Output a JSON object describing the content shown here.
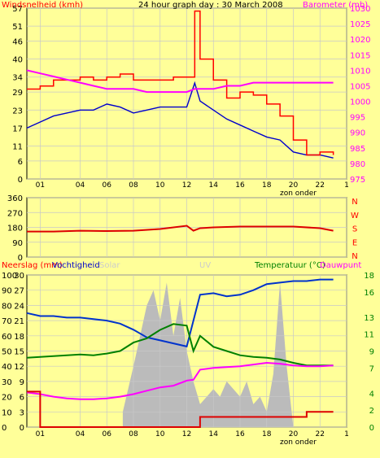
{
  "header": {
    "title": "24 hour graph day : 30 March 2008",
    "left_label": "Windsnelheid (kmh)",
    "right_label": "Barometer (mb)"
  },
  "panel2": {
    "right_letters": [
      "N",
      "W",
      "S",
      "E",
      "N"
    ]
  },
  "panel3": {
    "neerslag_label": "Neerslag (mm)",
    "humidity_label": "Vochtigheid",
    "solar_label": "Solar",
    "uv_label": "UV",
    "temp_label": "Temperatuur (°C)",
    "dew_label": "Dauwpunt"
  },
  "x_labels": {
    "ticks": [
      "01",
      "04",
      "06",
      "08",
      "10",
      "12",
      "14",
      "16",
      "18",
      "20",
      "22",
      "1"
    ],
    "sunset_label": "zon onder"
  },
  "colors": {
    "background": "#ffff99",
    "grid": "#c8c8c8",
    "wind": "#ff0000",
    "gust": "#0000cc",
    "barometer": "#ff00ff",
    "direction": "#dd0000",
    "humidity": "#0033cc",
    "temperature": "#008000",
    "dewpoint": "#ff00ff",
    "rain": "#dd0000",
    "solar": "#bbbbbb",
    "uv": "#99ccff"
  },
  "chart_data": [
    {
      "type": "line",
      "title": "24 hour graph day : 30 March 2008",
      "xlabel": "",
      "x_ticks": [
        "01",
        "04",
        "06",
        "08",
        "10",
        "12",
        "14",
        "16",
        "18",
        "20",
        "22",
        "1"
      ],
      "y_left_label": "Windsnelheid (kmh)",
      "y_left_ticks": [
        0,
        6,
        11,
        17,
        23,
        29,
        34,
        40,
        46,
        51,
        57
      ],
      "y_left_lim": [
        0,
        57
      ],
      "y_right_label": "Barometer (mb)",
      "y_right_ticks": [
        975,
        980,
        985,
        990,
        995,
        1000,
        1005,
        1010,
        1015,
        1020,
        1025,
        1030
      ],
      "y_right_lim": [
        975,
        1030
      ],
      "x_hours": [
        0,
        1,
        2,
        3,
        4,
        5,
        6,
        7,
        8,
        9,
        10,
        11,
        12,
        12.6,
        13,
        14,
        15,
        16,
        17,
        18,
        19,
        20,
        21,
        22,
        23
      ],
      "series": [
        {
          "name": "Windsnelheid",
          "axis": "left",
          "values": [
            17,
            19,
            21,
            22,
            23,
            23,
            25,
            24,
            22,
            23,
            24,
            24,
            24,
            32,
            26,
            23,
            20,
            18,
            16,
            14,
            13,
            9,
            8,
            8,
            7
          ]
        },
        {
          "name": "Windstoot",
          "axis": "left",
          "values": [
            30,
            31,
            33,
            33,
            34,
            33,
            34,
            35,
            33,
            33,
            33,
            34,
            34,
            56,
            40,
            33,
            27,
            29,
            28,
            25,
            21,
            13,
            8,
            9,
            8
          ]
        },
        {
          "name": "Barometer",
          "axis": "right",
          "values": [
            1010,
            1009,
            1008,
            1007,
            1006,
            1005,
            1004,
            1004,
            1004,
            1003,
            1003,
            1003,
            1003,
            1004,
            1004,
            1004,
            1005,
            1005,
            1006,
            1006,
            1006,
            1006,
            1006,
            1006,
            1006
          ]
        }
      ],
      "grid": true
    },
    {
      "type": "line",
      "y_ticks": [
        0,
        90,
        180,
        270,
        360
      ],
      "y_lim": [
        0,
        360
      ],
      "x_hours": [
        0,
        2,
        4,
        6,
        8,
        10,
        12,
        12.5,
        13,
        14,
        16,
        18,
        20,
        22,
        23
      ],
      "series": [
        {
          "name": "Windrichting",
          "values": [
            155,
            155,
            160,
            158,
            160,
            170,
            190,
            160,
            175,
            180,
            185,
            185,
            185,
            175,
            160
          ]
        }
      ],
      "grid": true
    },
    {
      "type": "line",
      "x_ticks": [
        "01",
        "04",
        "06",
        "08",
        "10",
        "12",
        "14",
        "16",
        "18",
        "20",
        "22",
        "1"
      ],
      "y_left_ticks": [
        0,
        10,
        20,
        30,
        40,
        50,
        60,
        70,
        80,
        90,
        100
      ],
      "y_left_lim": [
        0,
        100
      ],
      "y_mid_ticks": [
        0,
        3,
        6,
        9,
        12,
        15,
        18,
        21,
        24,
        27,
        30
      ],
      "y_right_ticks": [
        0,
        2,
        4,
        7,
        9,
        11,
        13,
        16,
        18
      ],
      "y_right_lim": [
        0,
        18
      ],
      "x_hours": [
        0,
        1,
        2,
        3,
        4,
        5,
        6,
        7,
        8,
        9,
        10,
        11,
        12,
        12.5,
        13,
        14,
        15,
        16,
        17,
        18,
        19,
        20,
        21,
        22,
        23
      ],
      "series": [
        {
          "name": "Vochtigheid",
          "axis": "left",
          "values": [
            75,
            73,
            73,
            72,
            72,
            71,
            70,
            68,
            64,
            59,
            57,
            55,
            53,
            70,
            87,
            88,
            86,
            87,
            90,
            94,
            95,
            96,
            96,
            97,
            97
          ]
        },
        {
          "name": "Temperatuur",
          "axis": "right",
          "values": [
            8.2,
            8.3,
            8.4,
            8.5,
            8.6,
            8.5,
            8.7,
            9.0,
            10.0,
            10.5,
            11.5,
            12.2,
            12.0,
            9.0,
            10.8,
            9.5,
            9.0,
            8.5,
            8.3,
            8.2,
            8.0,
            7.6,
            7.3,
            7.3,
            7.3
          ]
        },
        {
          "name": "Dauwpunt",
          "axis": "right",
          "values": [
            4.1,
            3.9,
            3.6,
            3.4,
            3.3,
            3.3,
            3.4,
            3.6,
            3.9,
            4.3,
            4.7,
            4.9,
            5.5,
            5.6,
            6.8,
            7.0,
            7.1,
            7.2,
            7.4,
            7.6,
            7.5,
            7.3,
            7.2,
            7.2,
            7.3
          ]
        },
        {
          "name": "Neerslag",
          "axis": "mid",
          "values": [
            7,
            0,
            0,
            0,
            0,
            0,
            0,
            0,
            0,
            0,
            0,
            0,
            0,
            0,
            2,
            2,
            2,
            2,
            2,
            2,
            2,
            2,
            3,
            3,
            3
          ]
        }
      ],
      "solar_hours": [
        7.2,
        8,
        8.5,
        9,
        9.5,
        10,
        10.5,
        11,
        11.5,
        12,
        12.5,
        13,
        13.5,
        14,
        14.5,
        15,
        15.5,
        16,
        16.5,
        17,
        17.5,
        18,
        18.5,
        19,
        19.5,
        20
      ],
      "solar_pct": [
        10,
        40,
        60,
        80,
        90,
        70,
        95,
        60,
        85,
        50,
        30,
        15,
        20,
        25,
        20,
        30,
        25,
        20,
        30,
        15,
        20,
        10,
        35,
        95,
        40,
        0
      ],
      "grid": true
    }
  ]
}
